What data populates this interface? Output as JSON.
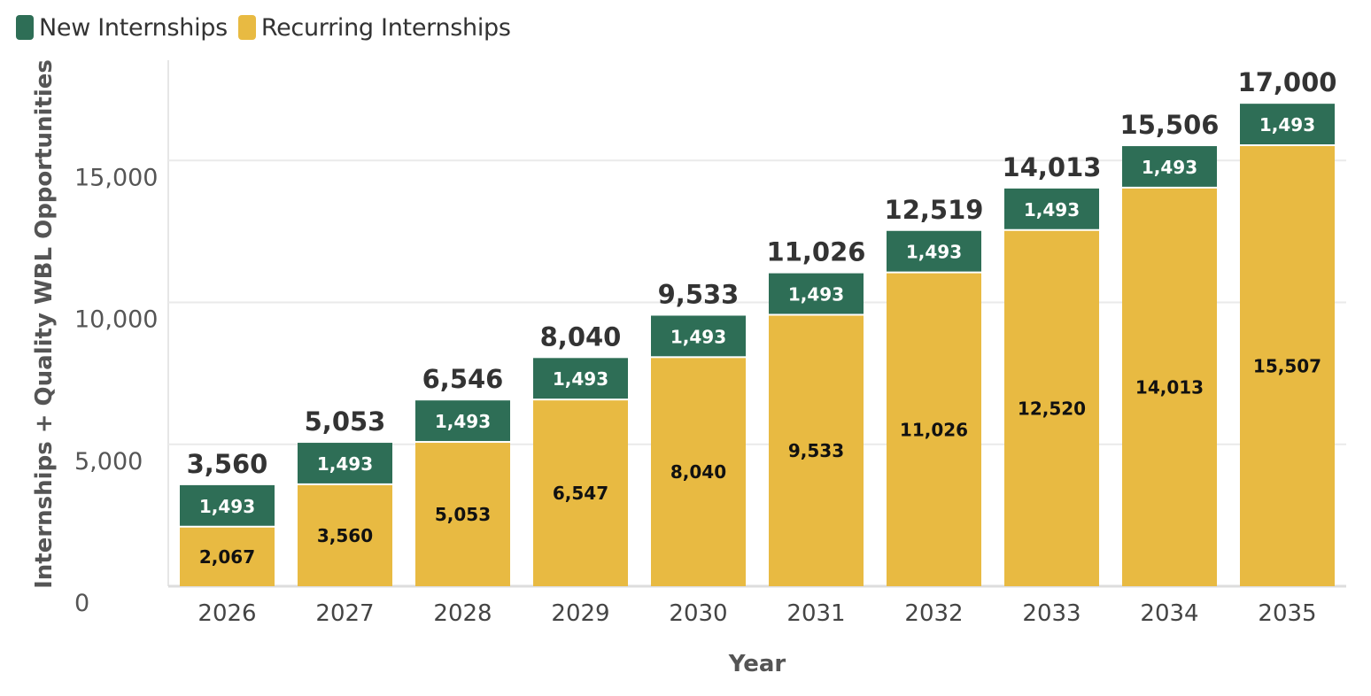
{
  "legend": [
    {
      "name": "New Internships",
      "color": "#2e6e56"
    },
    {
      "name": "Recurring Internships",
      "color": "#e8ba42"
    }
  ],
  "chart_data": {
    "type": "bar",
    "stacked": true,
    "xlabel": "Year",
    "ylabel": "Internships + Quality WBL Opportunities",
    "ylim": [
      0,
      18500
    ],
    "yticks": [
      0,
      5000,
      10000,
      15000
    ],
    "ytick_labels": [
      "0",
      "5,000",
      "10,000",
      "15,000"
    ],
    "grid": true,
    "legend_position": "top-left",
    "categories": [
      "2026",
      "2027",
      "2028",
      "2029",
      "2030",
      "2031",
      "2032",
      "2033",
      "2034",
      "2035"
    ],
    "series": [
      {
        "name": "Recurring Internships",
        "color": "#e8ba42",
        "values": [
          2067,
          3560,
          5053,
          6547,
          8040,
          9533,
          11026,
          12520,
          14013,
          15507
        ],
        "labels": [
          "2,067",
          "3,560",
          "5,053",
          "6,547",
          "8,040",
          "9,533",
          "11,026",
          "12,520",
          "14,013",
          "15,507"
        ]
      },
      {
        "name": "New Internships",
        "color": "#2e6e56",
        "values": [
          1493,
          1493,
          1493,
          1493,
          1493,
          1493,
          1493,
          1493,
          1493,
          1493
        ],
        "labels": [
          "1,493",
          "1,493",
          "1,493",
          "1,493",
          "1,493",
          "1,493",
          "1,493",
          "1,493",
          "1,493",
          "1,493"
        ]
      }
    ],
    "totals": [
      "3,560",
      "5,053",
      "6,546",
      "8,040",
      "9,533",
      "11,026",
      "12,519",
      "14,013",
      "15,506",
      "17,000"
    ]
  }
}
